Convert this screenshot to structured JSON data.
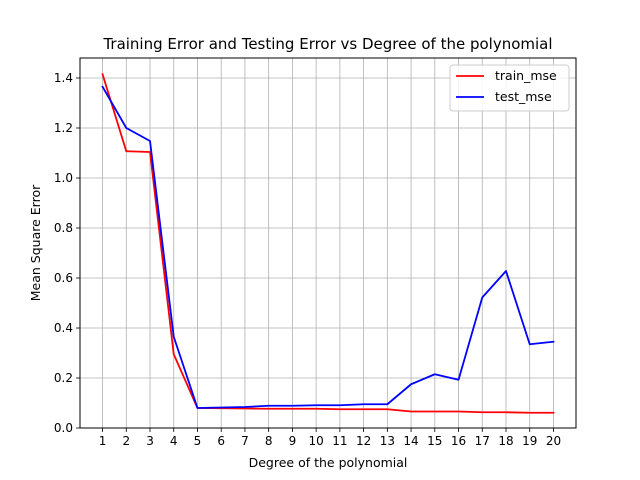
{
  "chart_data": {
    "type": "line",
    "title": "Training Error and Testing Error vs Degree of the polynomial",
    "xlabel": "Degree of the polynomial",
    "ylabel": "Mean Square Error",
    "x": [
      1,
      2,
      3,
      4,
      5,
      6,
      7,
      8,
      9,
      10,
      11,
      12,
      13,
      14,
      15,
      16,
      17,
      18,
      19,
      20
    ],
    "xlim": [
      0.05,
      20.95
    ],
    "ylim": [
      0.0,
      1.48
    ],
    "yticks": [
      0.0,
      0.2,
      0.4,
      0.6,
      0.8,
      1.0,
      1.2,
      1.4
    ],
    "ytick_labels": [
      "0.0",
      "0.2",
      "0.4",
      "0.6",
      "0.8",
      "1.0",
      "1.2",
      "1.4"
    ],
    "grid": true,
    "legend_position": "top-right",
    "series": [
      {
        "name": "train_mse",
        "color": "#ff0000",
        "values": [
          1.415,
          1.107,
          1.104,
          0.295,
          0.08,
          0.079,
          0.078,
          0.077,
          0.077,
          0.077,
          0.075,
          0.075,
          0.075,
          0.066,
          0.066,
          0.066,
          0.063,
          0.063,
          0.061,
          0.061
        ]
      },
      {
        "name": "test_mse",
        "color": "#0000ff",
        "values": [
          1.365,
          1.2,
          1.148,
          0.365,
          0.08,
          0.082,
          0.084,
          0.089,
          0.089,
          0.091,
          0.091,
          0.095,
          0.095,
          0.175,
          0.215,
          0.193,
          0.522,
          0.628,
          0.335,
          0.345
        ]
      }
    ]
  }
}
